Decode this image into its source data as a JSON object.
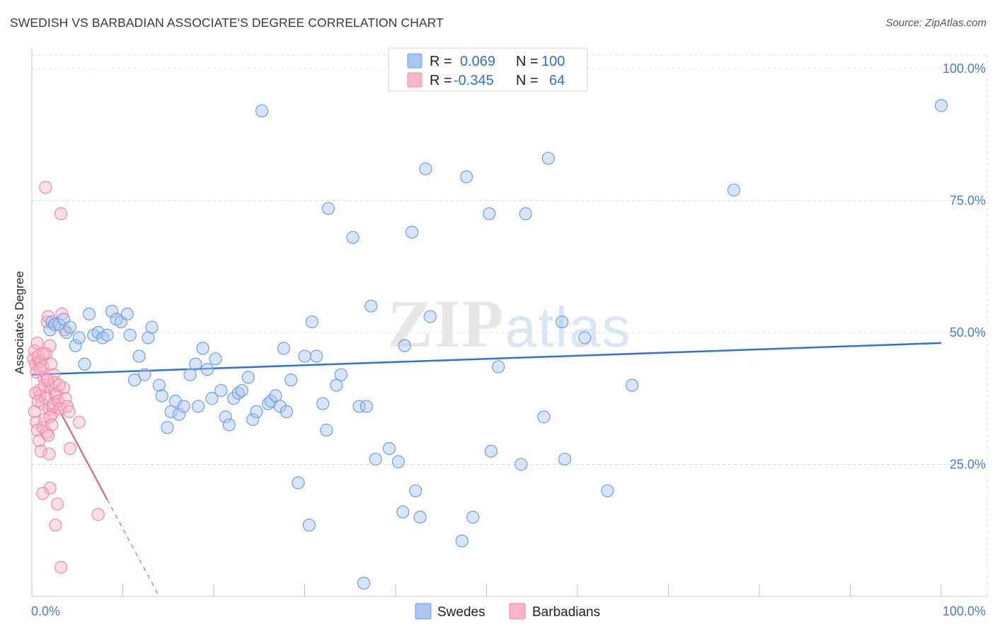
{
  "title": "SWEDISH VS BARBADIAN ASSOCIATE'S DEGREE CORRELATION CHART",
  "source": "Source: ZipAtlas.com",
  "watermark": "ZIPatlas",
  "colors": {
    "swedes_fill": "#a9c6f0",
    "swedes_stroke": "#6f9fe0",
    "swedes_line": "#2e74d0",
    "barbadians_fill": "#f6b5c8",
    "barbadians_stroke": "#ec8aa8",
    "barbadians_line": "#e0608a",
    "tick_label": "#4a7bd0",
    "grid": "#dcdcdc"
  },
  "legend": {
    "r_label": "R =",
    "n_label": "N =",
    "rows": [
      {
        "r": "0.069",
        "n": "100"
      },
      {
        "r": "-0.345",
        "n": "64"
      }
    ]
  },
  "chart_data": {
    "type": "scatter",
    "title": "SWEDISH VS BARBADIAN ASSOCIATE'S DEGREE CORRELATION CHART",
    "xlabel": "",
    "ylabel": "Associate's Degree",
    "xlim": [
      0,
      100
    ],
    "ylim": [
      0,
      100
    ],
    "x_tick_labels": [
      "0.0%",
      "100.0%"
    ],
    "y_ticks": [
      25,
      50,
      75,
      100
    ],
    "y_tick_labels": [
      "25.0%",
      "50.0%",
      "75.0%",
      "100.0%"
    ],
    "grid": true,
    "legend_position": "top-center",
    "series": [
      {
        "name": "Swedes",
        "r": 0.069,
        "n": 100,
        "trend": {
          "x0": 0,
          "y0": 42.0,
          "x1": 100,
          "y1": 48.0
        },
        "points": [
          [
            2.0,
            50.5
          ],
          [
            2.2,
            52.0
          ],
          [
            2.5,
            51.5
          ],
          [
            3.0,
            51.5
          ],
          [
            3.5,
            52.5
          ],
          [
            3.8,
            50.0
          ],
          [
            4.2,
            51.0
          ],
          [
            4.8,
            47.5
          ],
          [
            5.2,
            49.0
          ],
          [
            5.8,
            44.0
          ],
          [
            6.3,
            53.5
          ],
          [
            6.8,
            49.5
          ],
          [
            7.3,
            50.0
          ],
          [
            7.8,
            49.0
          ],
          [
            8.3,
            49.5
          ],
          [
            8.8,
            54.0
          ],
          [
            9.3,
            52.5
          ],
          [
            9.8,
            52.0
          ],
          [
            10.5,
            53.5
          ],
          [
            10.8,
            49.5
          ],
          [
            11.3,
            41.0
          ],
          [
            11.8,
            45.5
          ],
          [
            12.4,
            42.0
          ],
          [
            12.8,
            49.0
          ],
          [
            13.2,
            51.0
          ],
          [
            14.0,
            40.0
          ],
          [
            14.3,
            38.0
          ],
          [
            14.9,
            32.0
          ],
          [
            15.3,
            35.0
          ],
          [
            15.8,
            37.0
          ],
          [
            16.2,
            34.5
          ],
          [
            16.7,
            36.0
          ],
          [
            17.4,
            42.0
          ],
          [
            18.0,
            44.0
          ],
          [
            18.3,
            36.0
          ],
          [
            18.8,
            47.0
          ],
          [
            19.3,
            43.0
          ],
          [
            19.8,
            37.5
          ],
          [
            20.2,
            45.0
          ],
          [
            20.8,
            39.0
          ],
          [
            21.3,
            34.0
          ],
          [
            21.7,
            32.5
          ],
          [
            22.2,
            37.5
          ],
          [
            22.7,
            38.5
          ],
          [
            23.1,
            39.0
          ],
          [
            23.8,
            41.5
          ],
          [
            24.3,
            33.5
          ],
          [
            24.7,
            35.0
          ],
          [
            25.3,
            92.0
          ],
          [
            26.0,
            36.5
          ],
          [
            26.3,
            37.0
          ],
          [
            26.8,
            38.0
          ],
          [
            27.3,
            36.0
          ],
          [
            27.7,
            47.0
          ],
          [
            28.0,
            35.0
          ],
          [
            28.5,
            41.0
          ],
          [
            29.3,
            21.5
          ],
          [
            30.0,
            45.5
          ],
          [
            30.5,
            13.5
          ],
          [
            30.8,
            52.0
          ],
          [
            31.3,
            45.5
          ],
          [
            32.0,
            36.5
          ],
          [
            32.4,
            31.5
          ],
          [
            32.6,
            73.5
          ],
          [
            33.5,
            40.0
          ],
          [
            34.0,
            42.0
          ],
          [
            35.3,
            68.0
          ],
          [
            36.0,
            36.0
          ],
          [
            36.5,
            2.5
          ],
          [
            36.8,
            36.0
          ],
          [
            37.3,
            55.0
          ],
          [
            37.8,
            26.0
          ],
          [
            39.3,
            28.0
          ],
          [
            40.3,
            25.5
          ],
          [
            40.8,
            16.0
          ],
          [
            41.0,
            47.5
          ],
          [
            41.8,
            69.0
          ],
          [
            42.2,
            20.0
          ],
          [
            42.7,
            15.0
          ],
          [
            43.3,
            81.0
          ],
          [
            43.8,
            53.0
          ],
          [
            47.3,
            10.5
          ],
          [
            47.8,
            79.5
          ],
          [
            48.5,
            15.0
          ],
          [
            50.3,
            72.5
          ],
          [
            50.5,
            27.5
          ],
          [
            51.3,
            43.5
          ],
          [
            53.8,
            25.0
          ],
          [
            54.3,
            72.5
          ],
          [
            56.3,
            34.0
          ],
          [
            56.8,
            83.0
          ],
          [
            58.3,
            52.0
          ],
          [
            58.6,
            26.0
          ],
          [
            60.8,
            49.0
          ],
          [
            63.3,
            20.0
          ],
          [
            66.0,
            40.0
          ],
          [
            77.2,
            77.0
          ],
          [
            100.0,
            93.0
          ]
        ]
      },
      {
        "name": "Barbadians",
        "r": -0.345,
        "n": 64,
        "trend": {
          "x0": 0,
          "y0": 45.0,
          "x1": 8.3,
          "y1": 18.3
        },
        "trend_dashed": {
          "x0": 8.3,
          "y0": 18.3,
          "x1": 14.0,
          "y1": 0.0
        },
        "points": [
          [
            0.2,
            45.0
          ],
          [
            0.3,
            46.5
          ],
          [
            0.4,
            44.0
          ],
          [
            0.5,
            42.5
          ],
          [
            0.6,
            48.0
          ],
          [
            0.7,
            45.5
          ],
          [
            0.8,
            39.0
          ],
          [
            0.9,
            38.0
          ],
          [
            1.0,
            44.5
          ],
          [
            1.1,
            36.5
          ],
          [
            1.2,
            43.5
          ],
          [
            1.3,
            41.5
          ],
          [
            1.4,
            40.0
          ],
          [
            1.5,
            37.5
          ],
          [
            1.6,
            46.0
          ],
          [
            1.7,
            52.0
          ],
          [
            1.8,
            53.0
          ],
          [
            1.9,
            35.5
          ],
          [
            2.0,
            47.5
          ],
          [
            2.1,
            39.5
          ],
          [
            2.2,
            34.5
          ],
          [
            2.3,
            36.0
          ],
          [
            2.4,
            42.0
          ],
          [
            2.5,
            40.5
          ],
          [
            2.6,
            38.0
          ],
          [
            0.3,
            35.0
          ],
          [
            0.5,
            33.0
          ],
          [
            0.6,
            31.5
          ],
          [
            0.8,
            29.5
          ],
          [
            1.0,
            27.5
          ],
          [
            1.2,
            32.0
          ],
          [
            1.4,
            33.5
          ],
          [
            1.6,
            31.0
          ],
          [
            1.8,
            30.5
          ],
          [
            2.0,
            34.0
          ],
          [
            2.2,
            32.5
          ],
          [
            2.4,
            36.5
          ],
          [
            2.7,
            38.5
          ],
          [
            2.9,
            37.0
          ],
          [
            3.1,
            35.5
          ],
          [
            3.3,
            53.5
          ],
          [
            3.5,
            39.5
          ],
          [
            3.7,
            37.5
          ],
          [
            3.9,
            36.0
          ],
          [
            4.1,
            35.0
          ],
          [
            1.5,
            77.5
          ],
          [
            3.2,
            72.5
          ],
          [
            3.6,
            50.5
          ],
          [
            2.0,
            20.5
          ],
          [
            1.2,
            19.5
          ],
          [
            2.8,
            17.5
          ],
          [
            2.6,
            13.5
          ],
          [
            5.2,
            33.0
          ],
          [
            4.2,
            28.0
          ],
          [
            7.3,
            15.5
          ],
          [
            3.2,
            5.5
          ],
          [
            1.9,
            27.0
          ],
          [
            0.9,
            43.0
          ],
          [
            1.3,
            46.0
          ],
          [
            0.4,
            38.5
          ],
          [
            2.1,
            44.0
          ],
          [
            1.7,
            41.0
          ],
          [
            3.0,
            40.0
          ],
          [
            0.7,
            37.0
          ]
        ]
      }
    ]
  }
}
